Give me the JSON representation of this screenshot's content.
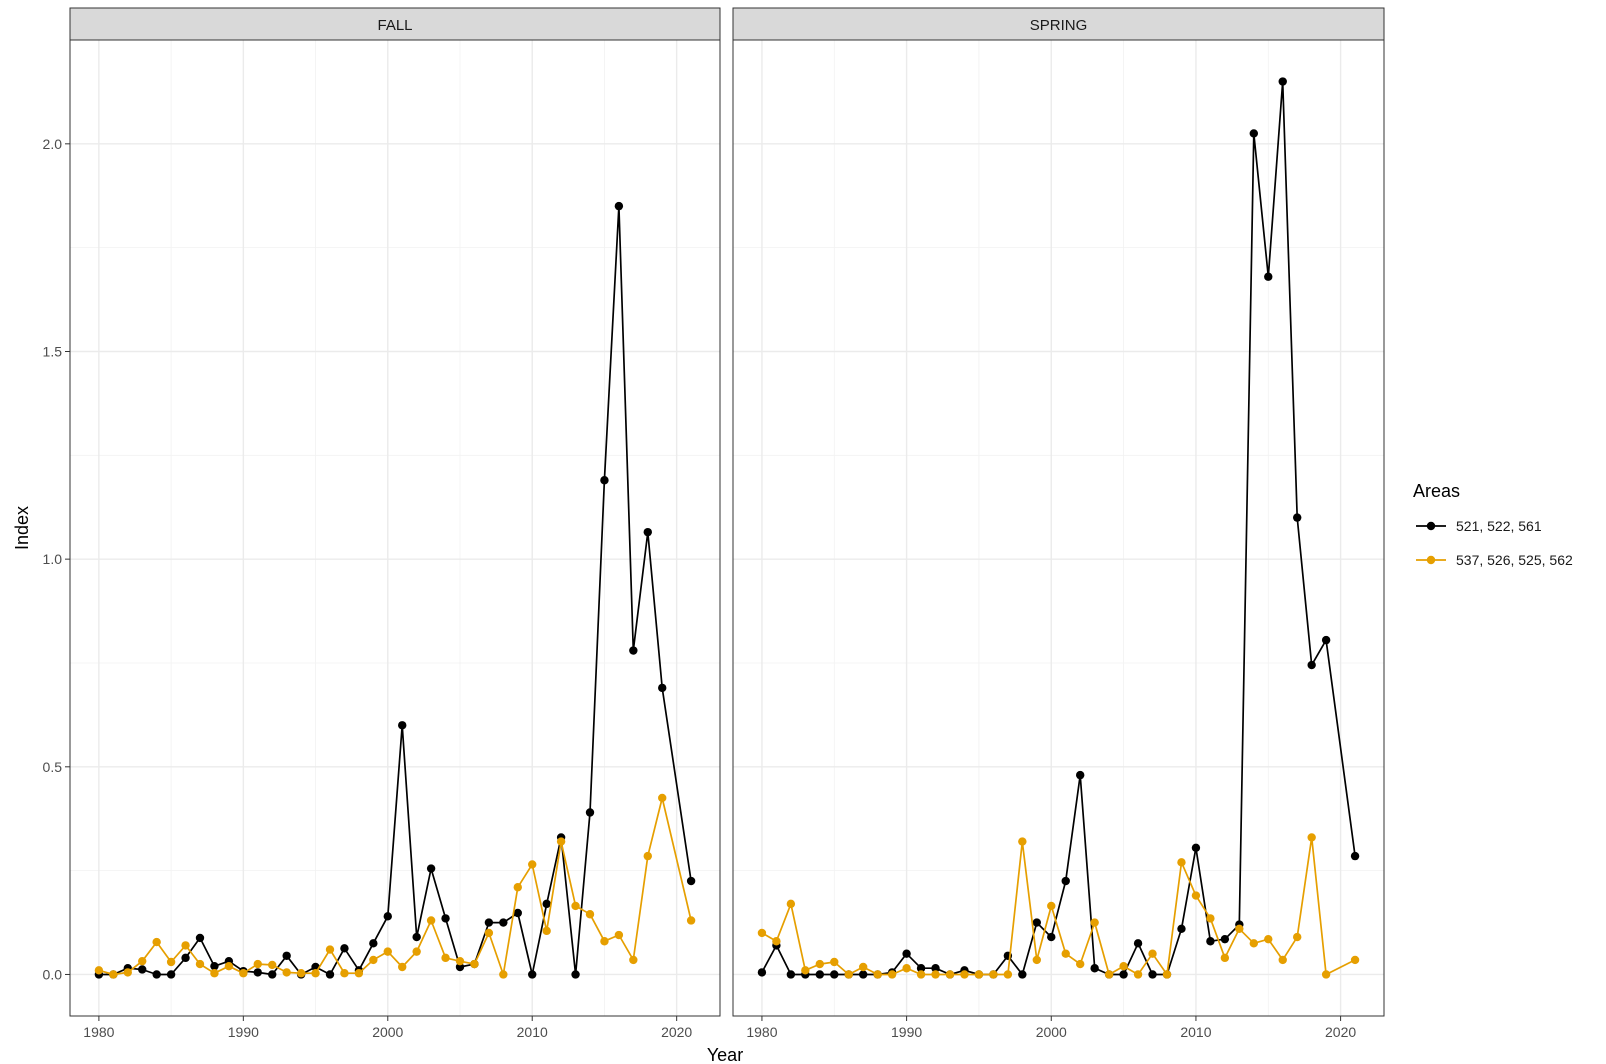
{
  "colors": {
    "series_a": "#000000",
    "series_b": "#E69F00"
  },
  "chart_data": {
    "type": "line",
    "xlabel": "Year",
    "ylabel": "Index",
    "xlim": [
      1978,
      2023
    ],
    "ylim": [
      -0.1,
      2.25
    ],
    "x_ticks": [
      1980,
      1990,
      2000,
      2010,
      2020
    ],
    "y_ticks": [
      0.0,
      0.5,
      1.0,
      1.5,
      2.0
    ],
    "y_tick_labels": [
      "0.0",
      "0.5",
      "1.0",
      "1.5",
      "2.0"
    ],
    "grid": true,
    "legend": {
      "title": "Areas",
      "placement": "right",
      "entries": [
        "521, 522, 561",
        "537, 526, 525, 562"
      ]
    },
    "panels": [
      {
        "strip": "FALL",
        "series": [
          {
            "name": "521, 522, 561",
            "color": "#000000",
            "x": [
              1980,
              1981,
              1982,
              1983,
              1984,
              1985,
              1986,
              1987,
              1988,
              1989,
              1990,
              1991,
              1992,
              1993,
              1994,
              1995,
              1996,
              1997,
              1998,
              1999,
              2000,
              2001,
              2002,
              2003,
              2004,
              2005,
              2006,
              2007,
              2008,
              2009,
              2010,
              2011,
              2012,
              2013,
              2014,
              2015,
              2016,
              2017,
              2018,
              2019,
              2021
            ],
            "y": [
              0.0,
              0.0,
              0.015,
              0.012,
              0.0,
              0.0,
              0.04,
              0.088,
              0.02,
              0.032,
              0.008,
              0.005,
              0.0,
              0.045,
              0.0,
              0.018,
              0.0,
              0.063,
              0.01,
              0.075,
              0.14,
              0.6,
              0.09,
              0.255,
              0.135,
              0.018,
              0.025,
              0.125,
              0.125,
              0.148,
              0.0,
              0.17,
              0.33,
              0.0,
              0.39,
              1.19,
              1.85,
              0.78,
              1.065,
              0.69,
              0.225
            ]
          },
          {
            "name": "537, 526, 525, 562",
            "color": "#E69F00",
            "x": [
              1980,
              1981,
              1982,
              1983,
              1984,
              1985,
              1986,
              1987,
              1988,
              1989,
              1990,
              1991,
              1992,
              1993,
              1994,
              1995,
              1996,
              1997,
              1998,
              1999,
              2000,
              2001,
              2002,
              2003,
              2004,
              2005,
              2006,
              2007,
              2008,
              2009,
              2010,
              2011,
              2012,
              2013,
              2014,
              2015,
              2016,
              2017,
              2018,
              2019,
              2021
            ],
            "y": [
              0.01,
              0.0,
              0.005,
              0.032,
              0.078,
              0.03,
              0.07,
              0.025,
              0.003,
              0.02,
              0.003,
              0.025,
              0.023,
              0.005,
              0.003,
              0.003,
              0.06,
              0.003,
              0.003,
              0.035,
              0.055,
              0.018,
              0.055,
              0.13,
              0.04,
              0.032,
              0.025,
              0.1,
              0.0,
              0.21,
              0.265,
              0.105,
              0.32,
              0.165,
              0.145,
              0.08,
              0.095,
              0.035,
              0.285,
              0.425,
              0.13
            ]
          }
        ]
      },
      {
        "strip": "SPRING",
        "series": [
          {
            "name": "521, 522, 561",
            "color": "#000000",
            "x": [
              1980,
              1981,
              1982,
              1983,
              1984,
              1985,
              1986,
              1987,
              1988,
              1989,
              1990,
              1991,
              1992,
              1993,
              1994,
              1995,
              1996,
              1997,
              1998,
              1999,
              2000,
              2001,
              2002,
              2003,
              2004,
              2005,
              2006,
              2007,
              2008,
              2009,
              2010,
              2011,
              2012,
              2013,
              2014,
              2015,
              2016,
              2017,
              2018,
              2019,
              2021
            ],
            "y": [
              0.005,
              0.07,
              0.0,
              0.0,
              0.0,
              0.0,
              0.0,
              0.0,
              0.0,
              0.005,
              0.05,
              0.015,
              0.015,
              0.0,
              0.01,
              0.0,
              0.0,
              0.045,
              0.0,
              0.125,
              0.09,
              0.225,
              0.48,
              0.015,
              0.0,
              0.0,
              0.075,
              0.0,
              0.0,
              0.11,
              0.305,
              0.08,
              0.085,
              0.12,
              2.025,
              1.68,
              2.15,
              1.1,
              0.745,
              0.805,
              0.285
            ]
          },
          {
            "name": "537, 526, 525, 562",
            "color": "#E69F00",
            "x": [
              1980,
              1981,
              1982,
              1983,
              1984,
              1985,
              1986,
              1987,
              1988,
              1989,
              1990,
              1991,
              1992,
              1993,
              1994,
              1995,
              1996,
              1997,
              1998,
              1999,
              2000,
              2001,
              2002,
              2003,
              2004,
              2005,
              2006,
              2007,
              2008,
              2009,
              2010,
              2011,
              2012,
              2013,
              2014,
              2015,
              2016,
              2017,
              2018,
              2019,
              2021
            ],
            "y": [
              0.1,
              0.08,
              0.17,
              0.01,
              0.025,
              0.03,
              0.0,
              0.018,
              0.0,
              0.0,
              0.015,
              0.0,
              0.0,
              0.0,
              0.0,
              0.0,
              0.0,
              0.0,
              0.32,
              0.035,
              0.165,
              0.05,
              0.025,
              0.125,
              0.0,
              0.02,
              0.0,
              0.05,
              0.0,
              0.27,
              0.19,
              0.135,
              0.04,
              0.11,
              0.075,
              0.085,
              0.035,
              0.09,
              0.33,
              0.0,
              0.035
            ]
          }
        ]
      }
    ]
  }
}
